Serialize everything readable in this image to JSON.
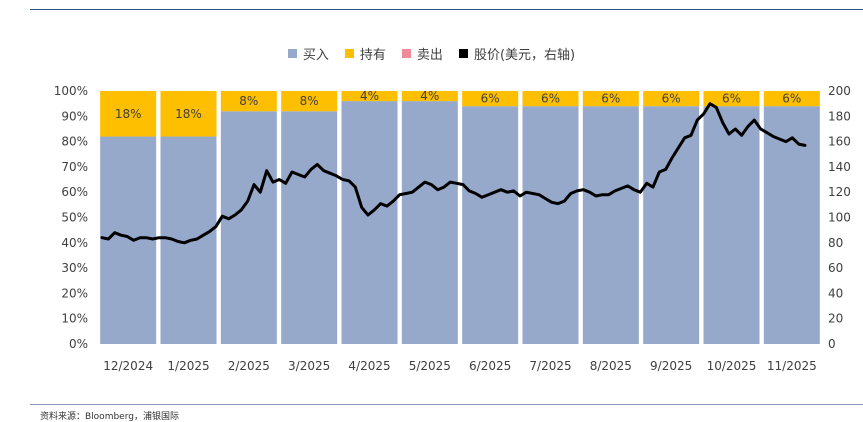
{
  "source_text": "资料来源：Bloomberg，浦银国际",
  "chart_data": {
    "type": "bar",
    "stacked": true,
    "categories": [
      "12/2024",
      "1/2025",
      "2/2025",
      "3/2025",
      "4/2025",
      "5/2025",
      "6/2025",
      "7/2025",
      "8/2025",
      "9/2025",
      "10/2025",
      "11/2025"
    ],
    "series": [
      {
        "name": "买入",
        "color": "#97a9cb",
        "values": [
          82,
          82,
          92,
          92,
          96,
          96,
          94,
          94,
          94,
          94,
          94,
          94
        ]
      },
      {
        "name": "持有",
        "color": "#fdbf00",
        "values": [
          18,
          18,
          8,
          8,
          4,
          4,
          6,
          6,
          6,
          6,
          6,
          6
        ],
        "labels": [
          "18%",
          "18%",
          "8%",
          "8%",
          "4%",
          "4%",
          "6%",
          "6%",
          "6%",
          "6%",
          "6%",
          "6%"
        ]
      },
      {
        "name": "卖出",
        "color": "#f08c9a",
        "values": [
          0,
          0,
          0,
          0,
          0,
          0,
          0,
          0,
          0,
          0,
          0,
          0
        ]
      }
    ],
    "line_series": {
      "name": "股价(美元，右轴)",
      "color": "#000000",
      "values": [
        84,
        83,
        88,
        86,
        85,
        82,
        84,
        84,
        83,
        84,
        84,
        83,
        81,
        80,
        82,
        83,
        86,
        89,
        93,
        101,
        99,
        102,
        106,
        113,
        126,
        120,
        137,
        128,
        130,
        127,
        136,
        134,
        132,
        138,
        142,
        137,
        135,
        133,
        130,
        129,
        124,
        108,
        102,
        106,
        111,
        109,
        113,
        118,
        119,
        120,
        124,
        128,
        126,
        122,
        124,
        128,
        127,
        126,
        121,
        119,
        116,
        118,
        120,
        122,
        120,
        121,
        117,
        120,
        119,
        118,
        115,
        112,
        111,
        113,
        119,
        121,
        122,
        120,
        117,
        118,
        118,
        121,
        123,
        125,
        122,
        120,
        127,
        124,
        136,
        138,
        147,
        155,
        163,
        165,
        177,
        182,
        190,
        187,
        175,
        166,
        170,
        165,
        172,
        177,
        170,
        167,
        164,
        162,
        160,
        163,
        158,
        157
      ]
    },
    "y_left": {
      "ticks": [
        "0%",
        "10%",
        "20%",
        "30%",
        "40%",
        "50%",
        "60%",
        "70%",
        "80%",
        "90%",
        "100%"
      ],
      "range": [
        0,
        100
      ]
    },
    "y_right": {
      "ticks": [
        "0",
        "20",
        "40",
        "60",
        "80",
        "100",
        "120",
        "140",
        "160",
        "180",
        "200"
      ],
      "range": [
        0,
        200
      ]
    },
    "grid": false,
    "legend_position": "top"
  }
}
